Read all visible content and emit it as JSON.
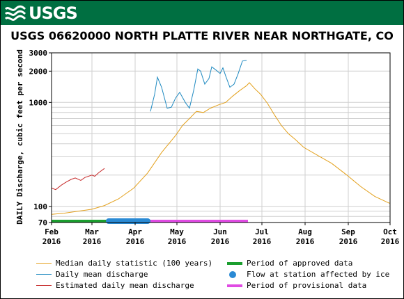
{
  "header": {
    "agency": "USGS"
  },
  "chart_data": {
    "type": "line",
    "title": "USGS 06620000 NORTH PLATTE RIVER NEAR NORTHGATE, CO",
    "ylabel": "DAILY Discharge, cubic feet per second",
    "yscale": "log",
    "ylim": [
      70,
      3000
    ],
    "y_ticks": [
      "3000",
      "2000",
      "1000",
      "100",
      "70"
    ],
    "x_ticks": [
      {
        "month": "Feb",
        "year": "2016"
      },
      {
        "month": "Mar",
        "year": "2016"
      },
      {
        "month": "Apr",
        "year": "2016"
      },
      {
        "month": "May",
        "year": "2016"
      },
      {
        "month": "Jun",
        "year": "2016"
      },
      {
        "month": "Jul",
        "year": "2016"
      },
      {
        "month": "Aug",
        "year": "2016"
      },
      {
        "month": "Sep",
        "year": "2016"
      },
      {
        "month": "Oct",
        "year": "2016"
      }
    ],
    "grid": true,
    "series": [
      {
        "name": "Median daily statistic (100 years)",
        "color": "#e3a01b",
        "points": [
          [
            "2016-02-01",
            84
          ],
          [
            "2016-02-10",
            86
          ],
          [
            "2016-02-20",
            90
          ],
          [
            "2016-03-01",
            94
          ],
          [
            "2016-03-10",
            102
          ],
          [
            "2016-03-20",
            118
          ],
          [
            "2016-03-31",
            150
          ],
          [
            "2016-04-10",
            210
          ],
          [
            "2016-04-20",
            330
          ],
          [
            "2016-04-30",
            480
          ],
          [
            "2016-05-05",
            600
          ],
          [
            "2016-05-10",
            700
          ],
          [
            "2016-05-15",
            820
          ],
          [
            "2016-05-20",
            800
          ],
          [
            "2016-05-25",
            880
          ],
          [
            "2016-05-31",
            950
          ],
          [
            "2016-06-05",
            1000
          ],
          [
            "2016-06-10",
            1150
          ],
          [
            "2016-06-15",
            1300
          ],
          [
            "2016-06-20",
            1450
          ],
          [
            "2016-06-22",
            1550
          ],
          [
            "2016-06-26",
            1350
          ],
          [
            "2016-06-30",
            1200
          ],
          [
            "2016-07-05",
            980
          ],
          [
            "2016-07-10",
            760
          ],
          [
            "2016-07-15",
            600
          ],
          [
            "2016-07-20",
            500
          ],
          [
            "2016-07-25",
            440
          ],
          [
            "2016-07-31",
            370
          ],
          [
            "2016-08-10",
            310
          ],
          [
            "2016-08-20",
            260
          ],
          [
            "2016-08-31",
            200
          ],
          [
            "2016-09-10",
            155
          ],
          [
            "2016-09-20",
            125
          ],
          [
            "2016-09-30",
            108
          ],
          [
            "2016-10-01",
            107
          ]
        ]
      },
      {
        "name": "Daily mean discharge",
        "color": "#1f8ac1",
        "points": [
          [
            "2016-04-12",
            820
          ],
          [
            "2016-04-15",
            1200
          ],
          [
            "2016-04-17",
            1750
          ],
          [
            "2016-04-20",
            1400
          ],
          [
            "2016-04-24",
            880
          ],
          [
            "2016-04-27",
            900
          ],
          [
            "2016-04-30",
            1100
          ],
          [
            "2016-05-03",
            1250
          ],
          [
            "2016-05-07",
            1000
          ],
          [
            "2016-05-10",
            880
          ],
          [
            "2016-05-13",
            1300
          ],
          [
            "2016-05-16",
            2100
          ],
          [
            "2016-05-18",
            2000
          ],
          [
            "2016-05-21",
            1500
          ],
          [
            "2016-05-24",
            1700
          ],
          [
            "2016-05-26",
            2200
          ],
          [
            "2016-05-29",
            2050
          ],
          [
            "2016-06-01",
            1900
          ],
          [
            "2016-06-03",
            2150
          ],
          [
            "2016-06-05",
            1800
          ],
          [
            "2016-06-08",
            1400
          ],
          [
            "2016-06-11",
            1500
          ],
          [
            "2016-06-14",
            1900
          ],
          [
            "2016-06-17",
            2500
          ],
          [
            "2016-06-20",
            2550
          ]
        ]
      },
      {
        "name": "Estimated daily mean discharge",
        "color": "#c62b2b",
        "points": [
          [
            "2016-02-01",
            150
          ],
          [
            "2016-02-04",
            145
          ],
          [
            "2016-02-08",
            160
          ],
          [
            "2016-02-11",
            170
          ],
          [
            "2016-02-15",
            182
          ],
          [
            "2016-02-18",
            188
          ],
          [
            "2016-02-22",
            178
          ],
          [
            "2016-02-25",
            190
          ],
          [
            "2016-03-01",
            200
          ],
          [
            "2016-03-03",
            195
          ],
          [
            "2016-03-06",
            212
          ],
          [
            "2016-03-10",
            232
          ]
        ]
      }
    ],
    "periods": [
      {
        "name": "Period of approved data",
        "color": "#1b9e2f",
        "start": "2016-02-01",
        "end": "2016-04-12"
      },
      {
        "name": "Flow at station affected by ice",
        "color": "#2a8ad4",
        "start": "2016-03-11",
        "end": "2016-04-12"
      },
      {
        "name": "Period of provisional data",
        "color": "#e04be3",
        "start": "2016-04-12",
        "end": "2016-06-21"
      }
    ]
  },
  "legend": [
    {
      "label": "Median daily statistic (100 years)",
      "color": "#e3a01b",
      "style": "line"
    },
    {
      "label": "Period of approved data",
      "color": "#1b9e2f",
      "style": "bar"
    },
    {
      "label": "Daily mean discharge",
      "color": "#1f8ac1",
      "style": "line"
    },
    {
      "label": "Flow at station affected by ice",
      "color": "#2a8ad4",
      "style": "dot"
    },
    {
      "label": "Estimated daily mean discharge",
      "color": "#c62b2b",
      "style": "line"
    },
    {
      "label": "Period of provisional data",
      "color": "#e04be3",
      "style": "bar"
    }
  ]
}
